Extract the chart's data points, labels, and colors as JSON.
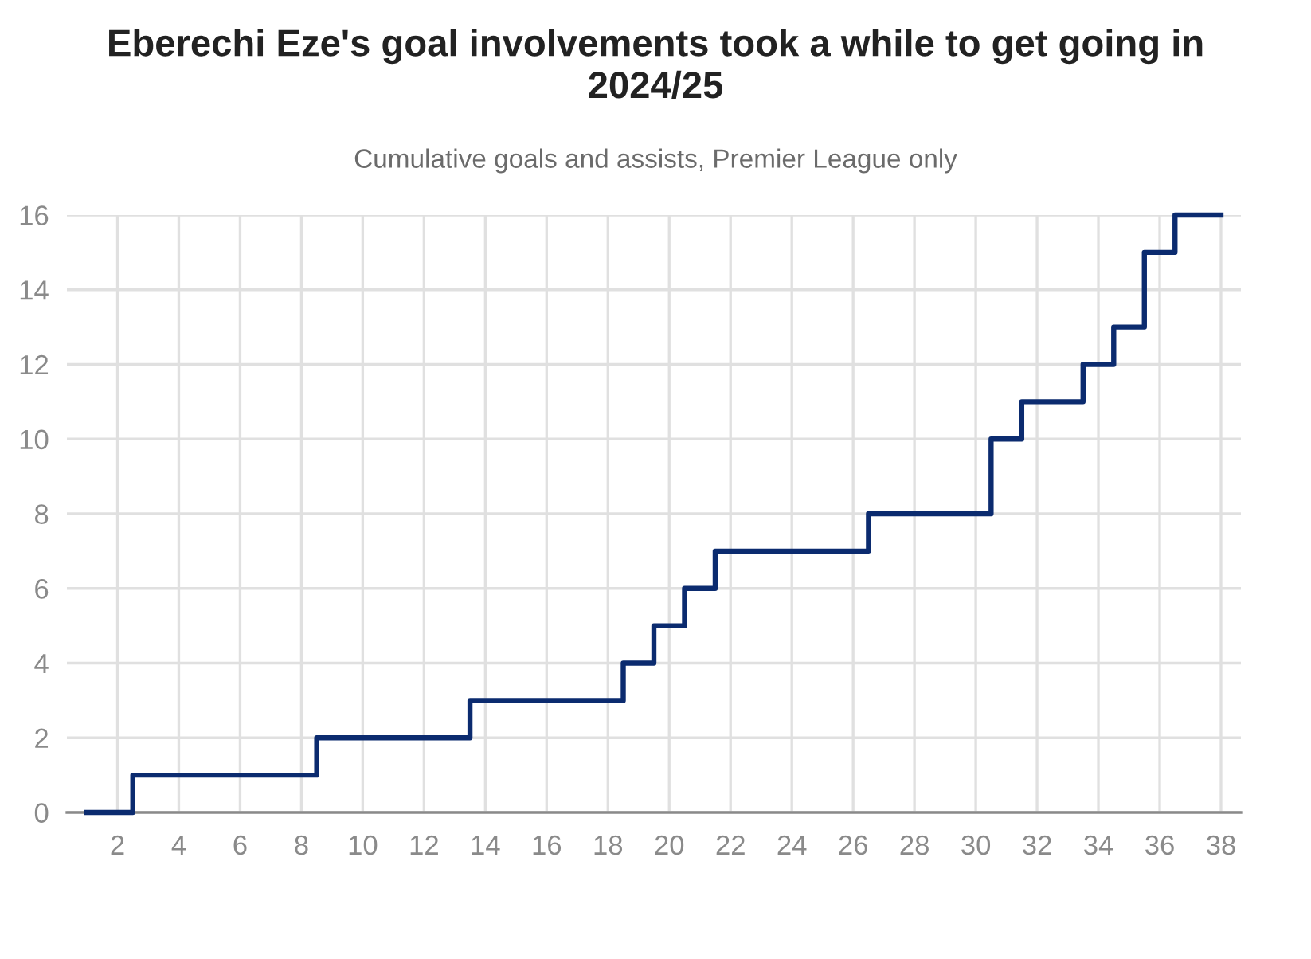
{
  "chart_data": {
    "type": "step",
    "title": "Eberechi Eze's goal involvements took a while to get going in 2024/25",
    "subtitle": "Cumulative goals and assists, Premier League only",
    "x": [
      1,
      2,
      3,
      4,
      5,
      6,
      7,
      8,
      9,
      10,
      11,
      12,
      13,
      14,
      15,
      16,
      17,
      18,
      19,
      20,
      21,
      22,
      23,
      24,
      25,
      26,
      27,
      28,
      29,
      30,
      31,
      32,
      33,
      34,
      35,
      36,
      37,
      38
    ],
    "values": [
      0,
      0,
      1,
      1,
      1,
      1,
      1,
      1,
      2,
      2,
      2,
      2,
      2,
      3,
      3,
      3,
      3,
      3,
      4,
      5,
      6,
      7,
      7,
      7,
      7,
      7,
      8,
      8,
      8,
      8,
      10,
      11,
      11,
      12,
      13,
      15,
      16,
      16
    ],
    "color": "#0b2b6f",
    "line_style": "solid",
    "xlim": [
      0.35,
      38.65
    ],
    "xticks": [
      2,
      4,
      6,
      8,
      10,
      12,
      14,
      16,
      18,
      20,
      22,
      24,
      26,
      28,
      30,
      32,
      34,
      36,
      38
    ],
    "ylim": [
      0,
      16
    ],
    "yticks": [
      0,
      2,
      4,
      6,
      8,
      10,
      12,
      14,
      16
    ],
    "grid": true
  }
}
